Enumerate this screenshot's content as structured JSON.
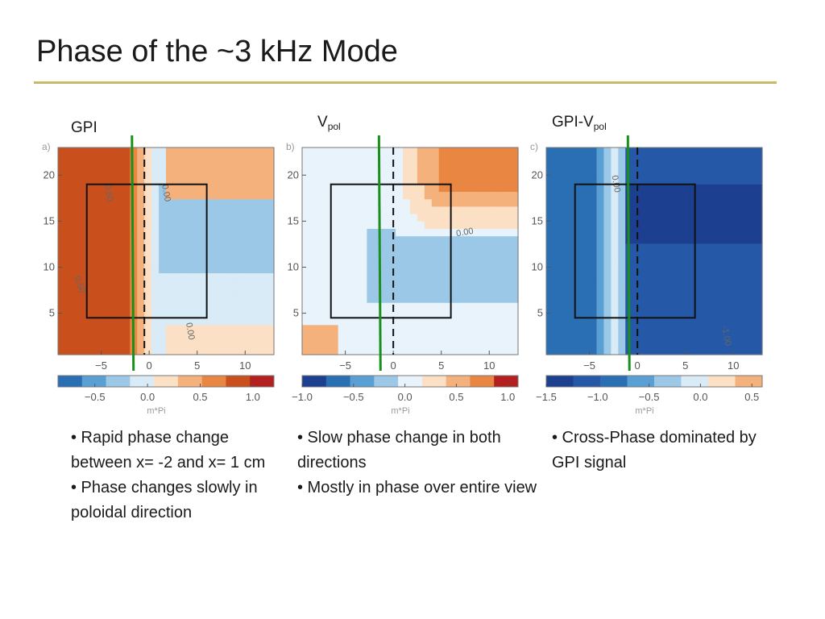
{
  "slide": {
    "title": "Phase of the ~3 kHz Mode"
  },
  "chart_data": [
    {
      "type": "heatmap",
      "title": "GPI",
      "title_sub": "",
      "panel_letter": "a)",
      "x_ticks": [
        -5,
        0,
        5,
        10
      ],
      "y_ticks": [
        5,
        10,
        15,
        20
      ],
      "xlim": [
        -9.5,
        13
      ],
      "ylim": [
        0.5,
        23
      ],
      "colorbar_label": "m*Pi",
      "colorbar_ticks": [
        "-0.5",
        "0.0",
        "0.5",
        "1.0"
      ],
      "colorbar_range": [
        -0.85,
        1.2
      ],
      "contour_labels": [
        "0.50",
        "0.00",
        "0.50",
        "0.00"
      ],
      "box": {
        "x": [
          -6.5,
          6
        ],
        "y": [
          4.5,
          19
        ]
      },
      "dashed_x": -0.5,
      "green_line_x": -1.8,
      "colors": [
        "#2a6fb3",
        "#5a9fd4",
        "#9cc8e8",
        "#d9ebf7",
        "#fbe0c6",
        "#f5b17c",
        "#e98642",
        "#c9501d",
        "#b3201f"
      ],
      "colormap": "blue-white-red"
    },
    {
      "type": "heatmap",
      "title": "V",
      "title_sub": "pol",
      "panel_letter": "b)",
      "x_ticks": [
        -5,
        0,
        5,
        10
      ],
      "y_ticks": [
        5,
        10,
        15,
        20
      ],
      "xlim": [
        -9.5,
        13
      ],
      "ylim": [
        0.5,
        23
      ],
      "colorbar_label": "m*Pi",
      "colorbar_ticks": [
        "-1.0",
        "-0.5",
        "0.0",
        "0.5",
        "1.0"
      ],
      "colorbar_range": [
        -1.0,
        1.1
      ],
      "contour_labels": [
        "0.00"
      ],
      "box": {
        "x": [
          -6.5,
          6
        ],
        "y": [
          4.5,
          19
        ]
      },
      "dashed_x": 0,
      "green_line_x": -1.5,
      "colors": [
        "#1c3f8f",
        "#2a6fb3",
        "#5a9fd4",
        "#9cc8e8",
        "#e8f3fb",
        "#fbe0c6",
        "#f5b17c",
        "#e98642",
        "#b3201f"
      ],
      "colormap": "blue-white-red"
    },
    {
      "type": "heatmap",
      "title": "GPI-V",
      "title_sub": "pol",
      "panel_letter": "c)",
      "x_ticks": [
        -5,
        0,
        5,
        10
      ],
      "y_ticks": [
        5,
        10,
        15,
        20
      ],
      "xlim": [
        -9.5,
        13
      ],
      "ylim": [
        0.5,
        23
      ],
      "colorbar_label": "m*Pi",
      "colorbar_ticks": [
        "-1.5",
        "-1.0",
        "-0.5",
        "0.0",
        "0.5"
      ],
      "colorbar_range": [
        -1.5,
        0.6
      ],
      "contour_labels": [
        "0.00",
        "-1.00"
      ],
      "box": {
        "x": [
          -6.5,
          6
        ],
        "y": [
          4.5,
          19
        ]
      },
      "dashed_x": 0,
      "green_line_x": -1,
      "colors": [
        "#1c3f8f",
        "#2658a8",
        "#2a6fb3",
        "#5a9fd4",
        "#9cc8e8",
        "#d9ebf7",
        "#fbe0c6",
        "#f5b17c"
      ],
      "colormap": "blue-white-red"
    }
  ],
  "bullets": [
    [
      "• Rapid phase change between x= -2 and x= 1 cm",
      "• Phase changes slowly in poloidal direction"
    ],
    [
      "• Slow phase change in both directions",
      "• Mostly in phase over entire view"
    ],
    [
      "• Cross-Phase dominated by GPI signal"
    ]
  ]
}
